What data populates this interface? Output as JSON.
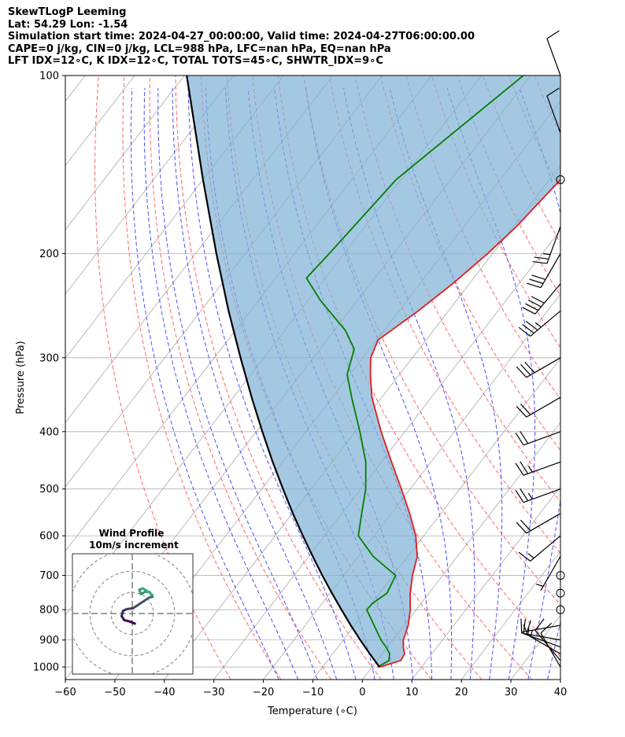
{
  "header": {
    "line1": "SkewTLogP Leeming",
    "line2": "Lat: 54.29   Lon: -1.54",
    "line3": "Simulation start time: 2024-04-27_00:00:00, Valid time: 2024-04-27T06:00:00.00",
    "line4": "CAPE=0 j/kg, CIN=0 j/kg, LCL=988 hPa, LFC=nan hPa, EQ=nan hPa",
    "line5": "LFT IDX=12∘C, K IDX=12∘C, TOTAL TOTS=45∘C, SHWTR_IDX=9∘C"
  },
  "colors": {
    "temperature": "#e41a1c",
    "dewpoint": "#008000",
    "parcel": "#000000",
    "cape_fill": "#7fb0d6",
    "isotherm": "#a9a9a9",
    "dry_adiabat": "#ff6666",
    "moist_adiabat": "#4d4dff",
    "mixing_ratio": "#8888ee",
    "hodograph_start": "#440154",
    "hodograph_end": "#35b779"
  },
  "inset": {
    "title": "Wind Profile",
    "subtitle": "10m/s increment"
  },
  "chart_data": {
    "type": "line",
    "xlabel": "Temperature (∘C)",
    "ylabel": "Pressure (hPa)",
    "xlim": [
      -60,
      40
    ],
    "ylim": [
      1050,
      100
    ],
    "y_scale": "log",
    "x_ticks": [
      "−60",
      "−50",
      "−40",
      "−30",
      "−20",
      "−10",
      "0",
      "10",
      "20",
      "30",
      "40"
    ],
    "y_ticks": [
      "100",
      "200",
      "300",
      "400",
      "500",
      "600",
      "700",
      "800",
      "900",
      "1000"
    ],
    "grid": true,
    "series": [
      {
        "role": "temperature",
        "pressure": [
          1000,
          975,
          950,
          925,
          900,
          850,
          800,
          750,
          700,
          650,
          600,
          550,
          500,
          450,
          400,
          350,
          320,
          300,
          280,
          250,
          225,
          200,
          180,
          150,
          125,
          100
        ],
        "temperature": [
          1.5,
          4.8,
          4.5,
          3.2,
          2.1,
          0.8,
          -1.2,
          -3.8,
          -6.1,
          -8.1,
          -11.6,
          -16.3,
          -21.8,
          -28.0,
          -34.8,
          -42.0,
          -45.9,
          -48.4,
          -49.7,
          -46.1,
          -43.4,
          -41.0,
          -39.4,
          -37.8,
          -34.0,
          -30.5
        ]
      },
      {
        "role": "dewpoint",
        "pressure": [
          1000,
          975,
          950,
          925,
          900,
          850,
          800,
          780,
          750,
          700,
          650,
          600,
          550,
          500,
          450,
          400,
          350,
          320,
          290,
          270,
          240,
          220,
          200,
          150,
          100
        ],
        "dewpoint": [
          1.1,
          2.4,
          1.5,
          -0.3,
          -2.4,
          -6.1,
          -10.0,
          -9.8,
          -8.5,
          -9.5,
          -17.0,
          -23.2,
          -26.0,
          -29.0,
          -33.2,
          -39.1,
          -46.1,
          -50.6,
          -53.1,
          -57.7,
          -67.5,
          -73.8,
          -73.0,
          -71.0,
          -61.5
        ]
      },
      {
        "role": "parcel",
        "pressure": [
          1000,
          950,
          900,
          850,
          800,
          750,
          700,
          650,
          600,
          550,
          500,
          450,
          400,
          350,
          300,
          250,
          200,
          150,
          100
        ],
        "temperature": [
          1.5,
          -2.5,
          -6.6,
          -10.8,
          -15.1,
          -19.6,
          -24.3,
          -29.2,
          -34.4,
          -39.9,
          -45.7,
          -52.0,
          -58.8,
          -66.3,
          -74.7,
          -84.4,
          -95.8,
          -110.0,
          -129.5
        ]
      }
    ],
    "wind_barbs": {
      "pressure": [
        1000,
        975,
        950,
        925,
        900,
        850,
        800,
        750,
        700,
        650,
        600,
        550,
        500,
        450,
        400,
        350,
        300,
        250,
        225,
        200,
        180,
        150,
        125,
        100
      ],
      "speed_kt": [
        10,
        10,
        15,
        15,
        10,
        5,
        0,
        0,
        0,
        5,
        15,
        20,
        25,
        25,
        20,
        20,
        30,
        35,
        40,
        30,
        25,
        0,
        10,
        10
      ],
      "direction_deg": [
        330,
        320,
        300,
        290,
        280,
        260,
        0,
        0,
        0,
        210,
        230,
        240,
        250,
        250,
        250,
        240,
        240,
        230,
        220,
        210,
        200,
        0,
        340,
        340
      ]
    },
    "hodograph": {
      "title": "Wind Profile",
      "increment_ms": 10,
      "u": [
        0.6,
        -0.6,
        -1.8,
        -2.4,
        -2.1,
        -1.2,
        0.2,
        1.4,
        2.6,
        3.8,
        4.6,
        4.0,
        3.0,
        2.0,
        1.6,
        2.4,
        3.6,
        4.6
      ],
      "v": [
        -2.3,
        -1.8,
        -1.5,
        -0.6,
        0.6,
        1.0,
        1.2,
        2.0,
        2.8,
        3.6,
        3.8,
        4.8,
        5.0,
        4.4,
        5.4,
        5.7,
        5.0,
        4.2
      ]
    }
  }
}
